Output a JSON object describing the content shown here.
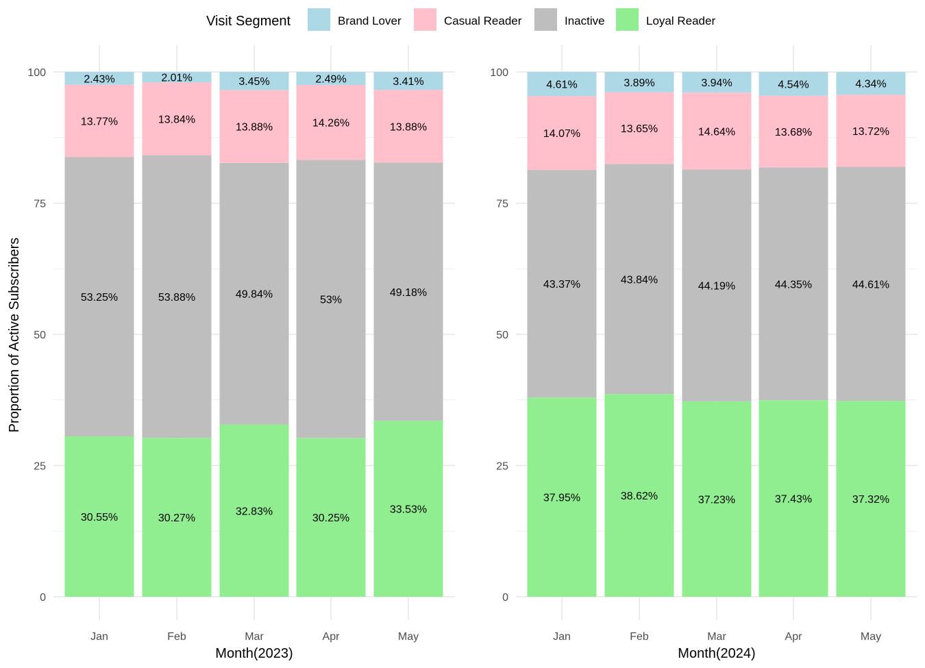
{
  "legend": {
    "title": "Visit Segment",
    "position": "top",
    "items": [
      {
        "key": "brand_lover",
        "label": "Brand Lover",
        "color": "#ADD8E6"
      },
      {
        "key": "casual_reader",
        "label": "Casual Reader",
        "color": "#FFC0CB"
      },
      {
        "key": "inactive",
        "label": "Inactive",
        "color": "#BEBEBE"
      },
      {
        "key": "loyal_reader",
        "label": "Loyal Reader",
        "color": "#90EE90"
      }
    ]
  },
  "chart_data": [
    {
      "type": "bar",
      "stacked": true,
      "xlabel": "Month(2023)",
      "ylabel": "Proportion of Active Subscribers",
      "ylim": [
        0,
        100
      ],
      "yticks": [
        "0",
        "25",
        "50",
        "75",
        "100"
      ],
      "grid": true,
      "categories": [
        "Jan",
        "Feb",
        "Mar",
        "Apr",
        "May"
      ],
      "series": [
        {
          "name": "Loyal Reader",
          "color": "#90EE90",
          "values": [
            30.55,
            30.27,
            32.83,
            30.25,
            33.53
          ],
          "labels": [
            "30.55%",
            "30.27%",
            "32.83%",
            "30.25%",
            "33.53%"
          ]
        },
        {
          "name": "Inactive",
          "color": "#BEBEBE",
          "values": [
            53.25,
            53.88,
            49.84,
            53,
            49.18
          ],
          "labels": [
            "53.25%",
            "53.88%",
            "49.84%",
            "53%",
            "49.18%"
          ]
        },
        {
          "name": "Casual Reader",
          "color": "#FFC0CB",
          "values": [
            13.77,
            13.84,
            13.88,
            14.26,
            13.88
          ],
          "labels": [
            "13.77%",
            "13.84%",
            "13.88%",
            "14.26%",
            "13.88%"
          ]
        },
        {
          "name": "Brand Lover",
          "color": "#ADD8E6",
          "values": [
            2.43,
            2.01,
            3.45,
            2.49,
            3.41
          ],
          "labels": [
            "2.43%",
            "2.01%",
            "3.45%",
            "2.49%",
            "3.41%"
          ]
        }
      ]
    },
    {
      "type": "bar",
      "stacked": true,
      "xlabel": "Month(2024)",
      "ylabel": "",
      "ylim": [
        0,
        100
      ],
      "yticks": [
        "0",
        "25",
        "50",
        "75",
        "100"
      ],
      "grid": true,
      "categories": [
        "Jan",
        "Feb",
        "Mar",
        "Apr",
        "May"
      ],
      "series": [
        {
          "name": "Loyal Reader",
          "color": "#90EE90",
          "values": [
            37.95,
            38.62,
            37.23,
            37.43,
            37.32
          ],
          "labels": [
            "37.95%",
            "38.62%",
            "37.23%",
            "37.43%",
            "37.32%"
          ]
        },
        {
          "name": "Inactive",
          "color": "#BEBEBE",
          "values": [
            43.37,
            43.84,
            44.19,
            44.35,
            44.61
          ],
          "labels": [
            "43.37%",
            "43.84%",
            "44.19%",
            "44.35%",
            "44.61%"
          ]
        },
        {
          "name": "Casual Reader",
          "color": "#FFC0CB",
          "values": [
            14.07,
            13.65,
            14.64,
            13.68,
            13.72
          ],
          "labels": [
            "14.07%",
            "13.65%",
            "14.64%",
            "13.68%",
            "13.72%"
          ]
        },
        {
          "name": "Brand Lover",
          "color": "#ADD8E6",
          "values": [
            4.61,
            3.89,
            3.94,
            4.54,
            4.34
          ],
          "labels": [
            "4.61%",
            "3.89%",
            "3.94%",
            "4.54%",
            "4.34%"
          ]
        }
      ]
    }
  ]
}
